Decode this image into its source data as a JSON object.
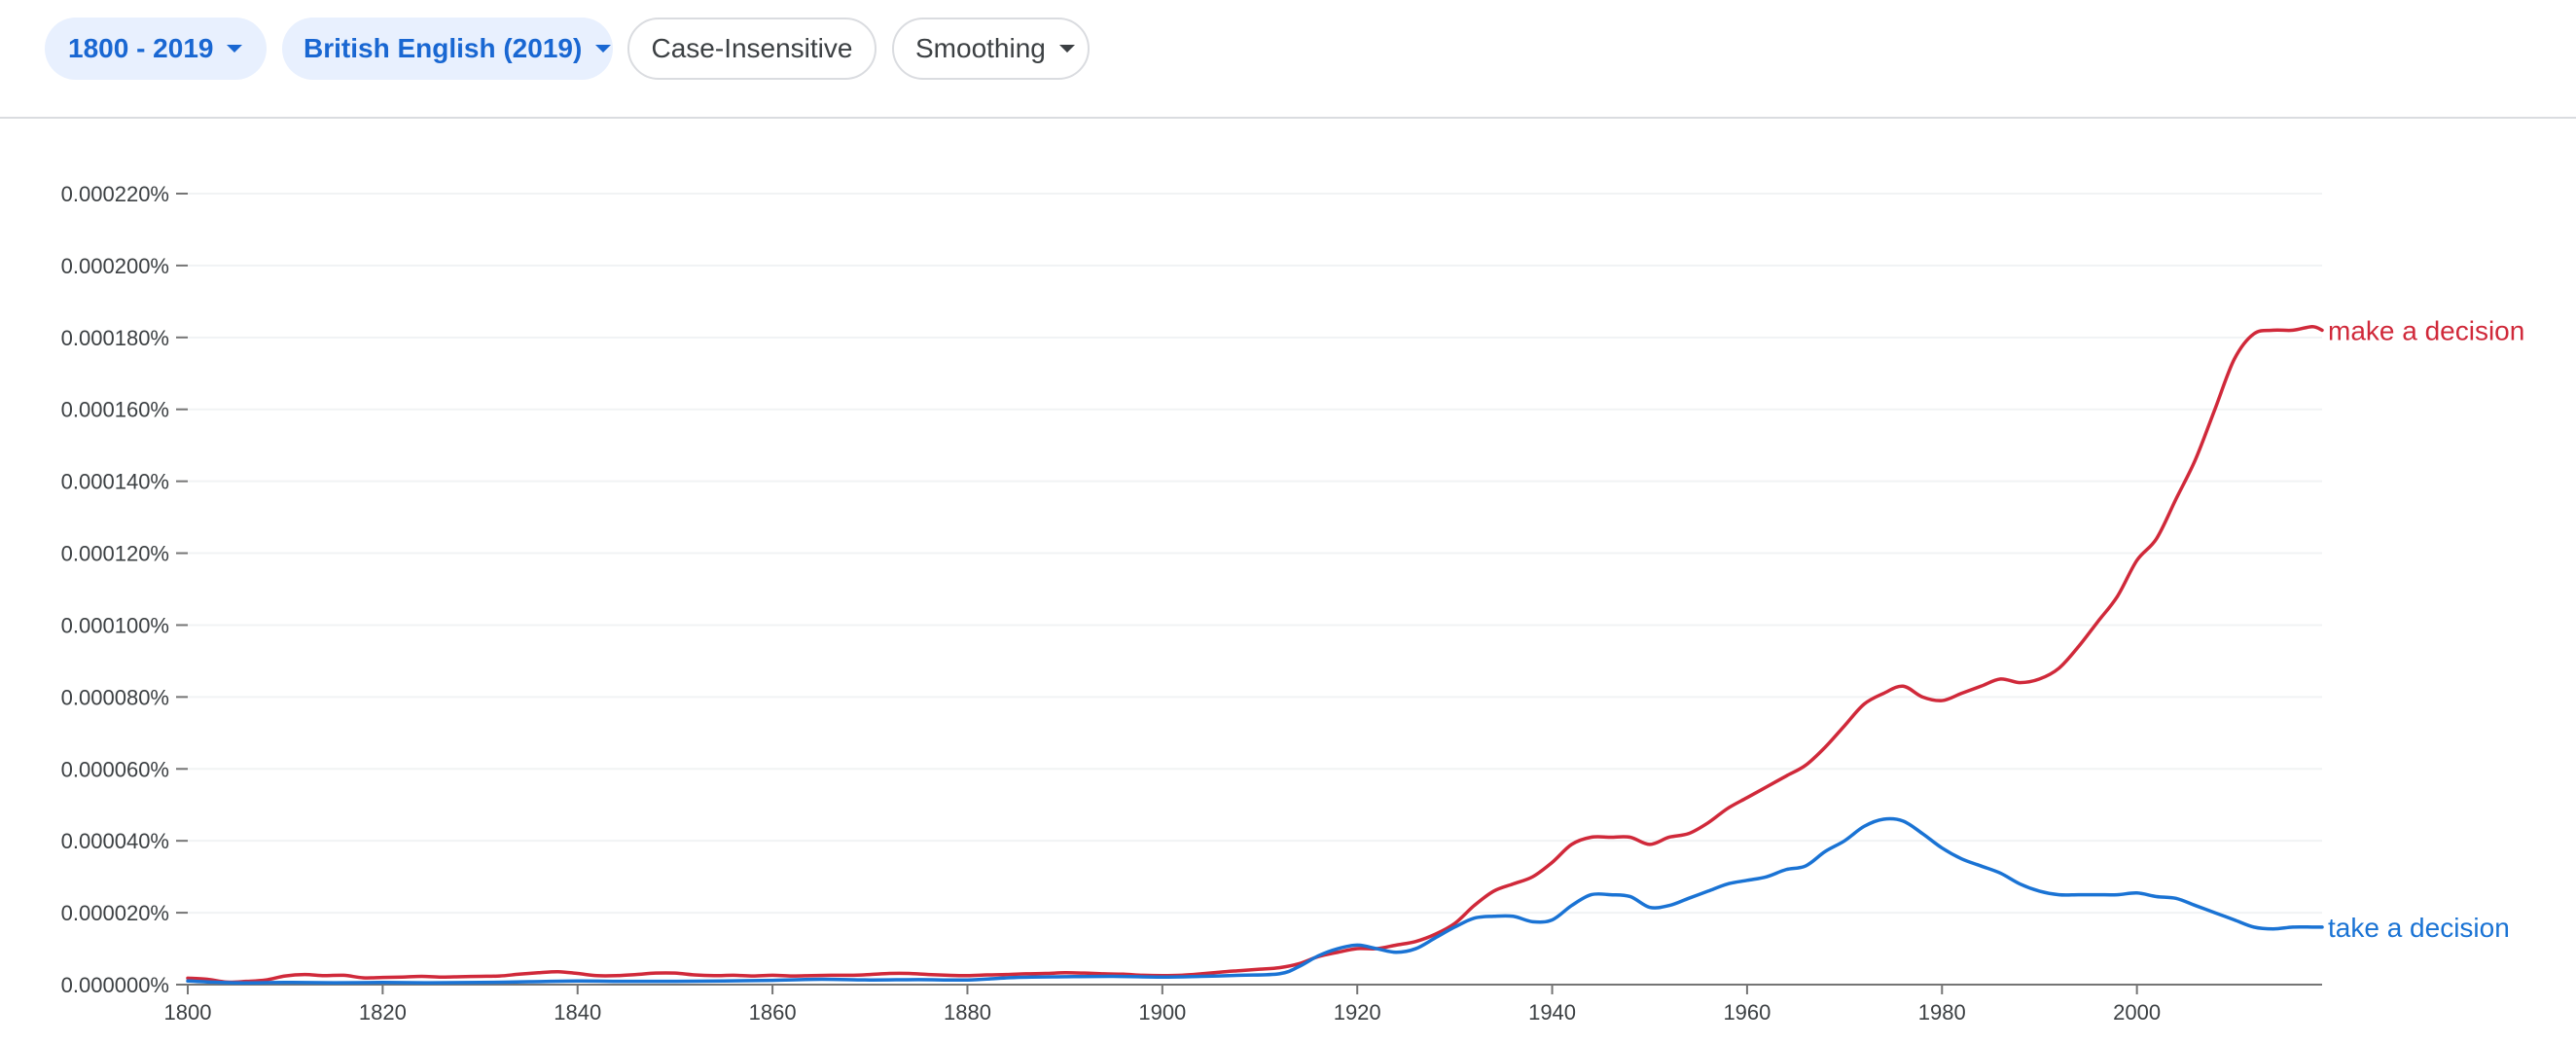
{
  "toolbar": {
    "range_label": "1800 - 2019",
    "corpus_label": "British English (2019)",
    "case_label": "Case-Insensitive",
    "smoothing_label": "Smoothing"
  },
  "colors": {
    "make": "#d0293a",
    "take": "#1a73d4",
    "chip_fill": "#e8f0fe",
    "chip_text": "#1967d2",
    "axis": "#757575",
    "grid": "#f1f3f4"
  },
  "chart_data": {
    "type": "line",
    "xlim": [
      1800,
      2019
    ],
    "ylim": [
      0,
      0.00022
    ],
    "x_ticks": [
      "1800",
      "1820",
      "1840",
      "1860",
      "1880",
      "1900",
      "1920",
      "1940",
      "1960",
      "1980",
      "2000"
    ],
    "x_tick_values": [
      1800,
      1820,
      1840,
      1860,
      1880,
      1900,
      1920,
      1940,
      1960,
      1980,
      2000
    ],
    "y_ticks": [
      "0.000000%",
      "0.000020%",
      "0.000040%",
      "0.000060%",
      "0.000080%",
      "0.000100%",
      "0.000120%",
      "0.000140%",
      "0.000160%",
      "0.000180%",
      "0.000200%",
      "0.000220%"
    ],
    "y_tick_values": [
      0,
      2e-05,
      4e-05,
      6e-05,
      8e-05,
      0.0001,
      0.00012,
      0.00014,
      0.00016,
      0.00018,
      0.0002,
      0.00022
    ],
    "series": [
      {
        "name": "make a decision",
        "color": "#d0293a",
        "points": [
          [
            1800,
            1.8e-06
          ],
          [
            1802,
            1.5e-06
          ],
          [
            1804,
            7e-07
          ],
          [
            1806,
            9e-07
          ],
          [
            1808,
            1.3e-06
          ],
          [
            1810,
            2.4e-06
          ],
          [
            1812,
            2.8e-06
          ],
          [
            1814,
            2.5e-06
          ],
          [
            1816,
            2.6e-06
          ],
          [
            1818,
            1.9e-06
          ],
          [
            1820,
            2e-06
          ],
          [
            1822,
            2.1e-06
          ],
          [
            1824,
            2.3e-06
          ],
          [
            1826,
            2.1e-06
          ],
          [
            1828,
            2.2e-06
          ],
          [
            1830,
            2.3e-06
          ],
          [
            1832,
            2.4e-06
          ],
          [
            1834,
            2.9e-06
          ],
          [
            1836,
            3.3e-06
          ],
          [
            1838,
            3.6e-06
          ],
          [
            1840,
            3.1e-06
          ],
          [
            1842,
            2.5e-06
          ],
          [
            1844,
            2.5e-06
          ],
          [
            1846,
            2.8e-06
          ],
          [
            1848,
            3.2e-06
          ],
          [
            1850,
            3.2e-06
          ],
          [
            1852,
            2.7e-06
          ],
          [
            1854,
            2.5e-06
          ],
          [
            1856,
            2.6e-06
          ],
          [
            1858,
            2.4e-06
          ],
          [
            1860,
            2.6e-06
          ],
          [
            1862,
            2.4e-06
          ],
          [
            1864,
            2.5e-06
          ],
          [
            1866,
            2.6e-06
          ],
          [
            1868,
            2.6e-06
          ],
          [
            1870,
            2.8e-06
          ],
          [
            1872,
            3.1e-06
          ],
          [
            1874,
            3.1e-06
          ],
          [
            1876,
            2.8e-06
          ],
          [
            1878,
            2.6e-06
          ],
          [
            1880,
            2.5e-06
          ],
          [
            1882,
            2.7e-06
          ],
          [
            1884,
            2.8e-06
          ],
          [
            1886,
            3e-06
          ],
          [
            1888,
            3.1e-06
          ],
          [
            1890,
            3.3e-06
          ],
          [
            1892,
            3.2e-06
          ],
          [
            1894,
            3e-06
          ],
          [
            1896,
            2.9e-06
          ],
          [
            1898,
            2.6e-06
          ],
          [
            1900,
            2.5e-06
          ],
          [
            1902,
            2.6e-06
          ],
          [
            1904,
            3e-06
          ],
          [
            1906,
            3.5e-06
          ],
          [
            1908,
            3.9e-06
          ],
          [
            1910,
            4.3e-06
          ],
          [
            1912,
            4.7e-06
          ],
          [
            1914,
            5.8e-06
          ],
          [
            1916,
            7.8e-06
          ],
          [
            1918,
            9e-06
          ],
          [
            1920,
            1e-05
          ],
          [
            1922,
            1e-05
          ],
          [
            1924,
            1.1e-05
          ],
          [
            1926,
            1.2e-05
          ],
          [
            1928,
            1.4e-05
          ],
          [
            1930,
            1.7e-05
          ],
          [
            1932,
            2.2e-05
          ],
          [
            1934,
            2.6e-05
          ],
          [
            1936,
            2.8e-05
          ],
          [
            1938,
            3e-05
          ],
          [
            1940,
            3.4e-05
          ],
          [
            1942,
            3.9e-05
          ],
          [
            1944,
            4.1e-05
          ],
          [
            1946,
            4.1e-05
          ],
          [
            1948,
            4.1e-05
          ],
          [
            1950,
            3.9e-05
          ],
          [
            1952,
            4.1e-05
          ],
          [
            1954,
            4.2e-05
          ],
          [
            1956,
            4.5e-05
          ],
          [
            1958,
            4.9e-05
          ],
          [
            1960,
            5.2e-05
          ],
          [
            1962,
            5.5e-05
          ],
          [
            1964,
            5.8e-05
          ],
          [
            1966,
            6.1e-05
          ],
          [
            1968,
            6.6e-05
          ],
          [
            1970,
            7.2e-05
          ],
          [
            1972,
            7.8e-05
          ],
          [
            1974,
            8.1e-05
          ],
          [
            1976,
            8.3e-05
          ],
          [
            1978,
            8e-05
          ],
          [
            1980,
            7.9e-05
          ],
          [
            1982,
            8.1e-05
          ],
          [
            1984,
            8.3e-05
          ],
          [
            1986,
            8.5e-05
          ],
          [
            1988,
            8.4e-05
          ],
          [
            1990,
            8.5e-05
          ],
          [
            1992,
            8.8e-05
          ],
          [
            1994,
            9.4e-05
          ],
          [
            1996,
            0.000101
          ],
          [
            1998,
            0.000108
          ],
          [
            2000,
            0.000118
          ],
          [
            2002,
            0.000124
          ],
          [
            2004,
            0.000135
          ],
          [
            2006,
            0.000146
          ],
          [
            2008,
            0.00016
          ],
          [
            2010,
            0.000174
          ],
          [
            2012,
            0.000181
          ],
          [
            2014,
            0.000182
          ],
          [
            2016,
            0.000182
          ],
          [
            2018,
            0.000183
          ],
          [
            2019,
            0.000182
          ]
        ]
      },
      {
        "name": "take a decision",
        "color": "#1a73d4",
        "points": [
          [
            1800,
            1e-06
          ],
          [
            1805,
            5e-07
          ],
          [
            1810,
            6e-07
          ],
          [
            1815,
            5e-07
          ],
          [
            1820,
            6e-07
          ],
          [
            1825,
            5e-07
          ],
          [
            1830,
            6e-07
          ],
          [
            1835,
            8e-07
          ],
          [
            1840,
            1e-06
          ],
          [
            1845,
            9e-07
          ],
          [
            1850,
            9e-07
          ],
          [
            1855,
            1e-06
          ],
          [
            1860,
            1.2e-06
          ],
          [
            1865,
            1.5e-06
          ],
          [
            1870,
            1.3e-06
          ],
          [
            1875,
            1.4e-06
          ],
          [
            1880,
            1.3e-06
          ],
          [
            1885,
            2e-06
          ],
          [
            1890,
            2.2e-06
          ],
          [
            1895,
            2.3e-06
          ],
          [
            1900,
            2.1e-06
          ],
          [
            1904,
            2.3e-06
          ],
          [
            1908,
            2.6e-06
          ],
          [
            1912,
            3e-06
          ],
          [
            1914,
            5e-06
          ],
          [
            1916,
            8e-06
          ],
          [
            1918,
            1e-05
          ],
          [
            1920,
            1.1e-05
          ],
          [
            1922,
            1e-05
          ],
          [
            1924,
            9e-06
          ],
          [
            1926,
            1e-05
          ],
          [
            1928,
            1.3e-05
          ],
          [
            1930,
            1.6e-05
          ],
          [
            1932,
            1.85e-05
          ],
          [
            1934,
            1.9e-05
          ],
          [
            1936,
            1.9e-05
          ],
          [
            1938,
            1.75e-05
          ],
          [
            1940,
            1.8e-05
          ],
          [
            1942,
            2.2e-05
          ],
          [
            1944,
            2.5e-05
          ],
          [
            1946,
            2.5e-05
          ],
          [
            1948,
            2.45e-05
          ],
          [
            1950,
            2.15e-05
          ],
          [
            1952,
            2.2e-05
          ],
          [
            1954,
            2.4e-05
          ],
          [
            1956,
            2.6e-05
          ],
          [
            1958,
            2.8e-05
          ],
          [
            1960,
            2.9e-05
          ],
          [
            1962,
            3e-05
          ],
          [
            1964,
            3.2e-05
          ],
          [
            1966,
            3.3e-05
          ],
          [
            1968,
            3.7e-05
          ],
          [
            1970,
            4e-05
          ],
          [
            1972,
            4.4e-05
          ],
          [
            1974,
            4.6e-05
          ],
          [
            1976,
            4.55e-05
          ],
          [
            1978,
            4.2e-05
          ],
          [
            1980,
            3.8e-05
          ],
          [
            1982,
            3.5e-05
          ],
          [
            1984,
            3.3e-05
          ],
          [
            1986,
            3.1e-05
          ],
          [
            1988,
            2.8e-05
          ],
          [
            1990,
            2.6e-05
          ],
          [
            1992,
            2.5e-05
          ],
          [
            1994,
            2.5e-05
          ],
          [
            1996,
            2.5e-05
          ],
          [
            1998,
            2.5e-05
          ],
          [
            2000,
            2.55e-05
          ],
          [
            2002,
            2.45e-05
          ],
          [
            2004,
            2.4e-05
          ],
          [
            2006,
            2.2e-05
          ],
          [
            2008,
            2e-05
          ],
          [
            2010,
            1.8e-05
          ],
          [
            2012,
            1.6e-05
          ],
          [
            2014,
            1.55e-05
          ],
          [
            2016,
            1.6e-05
          ],
          [
            2018,
            1.6e-05
          ],
          [
            2019,
            1.6e-05
          ]
        ]
      }
    ]
  }
}
